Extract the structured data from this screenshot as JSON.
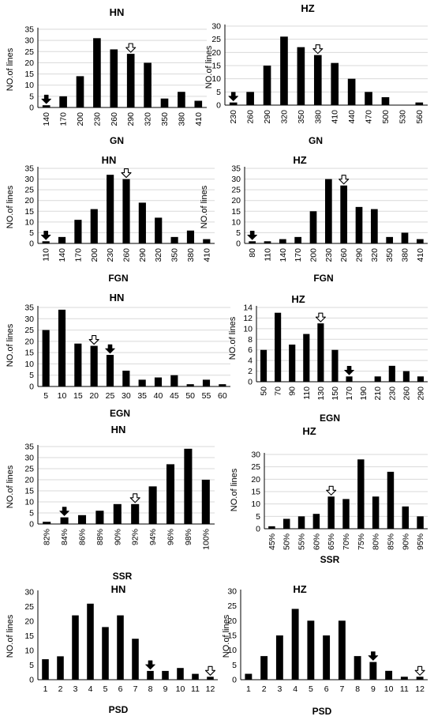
{
  "colors": {
    "bar": "#000000",
    "grid": "#d9d9d9",
    "axis": "#000000",
    "filled_arrow": "#000000",
    "open_arrow": "#ffffff"
  },
  "chart_data": [
    {
      "type": "bar",
      "title": "HN",
      "xlabel": "GN",
      "ylabel": "NO.of lines",
      "categories": [
        "140",
        "170",
        "200",
        "230",
        "260",
        "290",
        "320",
        "350",
        "380",
        "410"
      ],
      "values": [
        1,
        5,
        14,
        31,
        26,
        24,
        20,
        4,
        7,
        3
      ],
      "ylim": [
        0,
        35
      ],
      "yticks": [
        0,
        5,
        10,
        15,
        20,
        25,
        30,
        35
      ],
      "grid": true,
      "x_rotated": true,
      "markers": [
        {
          "category": "140",
          "style": "filled"
        },
        {
          "category": "290",
          "style": "open"
        }
      ]
    },
    {
      "type": "bar",
      "title": "HZ",
      "xlabel": "GN",
      "ylabel": "NO.of lines",
      "categories": [
        "230",
        "260",
        "290",
        "320",
        "350",
        "380",
        "410",
        "440",
        "470",
        "500",
        "530",
        "560"
      ],
      "values": [
        1,
        5,
        15,
        26,
        22,
        19,
        16,
        10,
        5,
        3,
        0,
        1
      ],
      "ylim": [
        0,
        30
      ],
      "yticks": [
        0,
        5,
        10,
        15,
        20,
        25,
        30
      ],
      "grid": true,
      "x_rotated": true,
      "markers": [
        {
          "category": "230",
          "style": "filled"
        },
        {
          "category": "380",
          "style": "open"
        }
      ]
    },
    {
      "type": "bar",
      "title": "HN",
      "xlabel": "FGN",
      "ylabel": "NO.of lines",
      "categories": [
        "110",
        "140",
        "170",
        "200",
        "230",
        "260",
        "290",
        "320",
        "350",
        "380",
        "410"
      ],
      "values": [
        1,
        3,
        11,
        16,
        32,
        30,
        19,
        12,
        3,
        6,
        2
      ],
      "ylim": [
        0,
        35
      ],
      "yticks": [
        0,
        5,
        10,
        15,
        20,
        25,
        30,
        35
      ],
      "grid": true,
      "x_rotated": true,
      "markers": [
        {
          "category": "110",
          "style": "filled"
        },
        {
          "category": "260",
          "style": "open"
        }
      ]
    },
    {
      "type": "bar",
      "title": "HZ",
      "xlabel": "FGN",
      "ylabel": "NO.of lines",
      "categories": [
        "80",
        "110",
        "140",
        "170",
        "200",
        "230",
        "260",
        "290",
        "320",
        "350",
        "380",
        "410"
      ],
      "values": [
        1,
        1,
        2,
        3,
        15,
        30,
        27,
        17,
        16,
        3,
        5,
        2
      ],
      "ylim": [
        0,
        35
      ],
      "yticks": [
        0,
        5,
        10,
        15,
        20,
        25,
        30,
        35
      ],
      "grid": true,
      "x_rotated": true,
      "markers": [
        {
          "category": "80",
          "style": "filled"
        },
        {
          "category": "260",
          "style": "open"
        }
      ]
    },
    {
      "type": "bar",
      "title": "HN",
      "xlabel": "EGN",
      "ylabel": "NO.of lines",
      "categories": [
        "5",
        "10",
        "15",
        "20",
        "25",
        "30",
        "35",
        "40",
        "45",
        "50",
        "55",
        "60"
      ],
      "values": [
        25,
        34,
        19,
        18,
        14,
        7,
        3,
        4,
        5,
        1,
        3,
        1
      ],
      "ylim": [
        0,
        35
      ],
      "yticks": [
        0,
        5,
        10,
        15,
        20,
        25,
        30,
        35
      ],
      "grid": true,
      "x_rotated": false,
      "markers": [
        {
          "category": "20",
          "style": "open"
        },
        {
          "category": "25",
          "style": "filled"
        }
      ]
    },
    {
      "type": "bar",
      "title": "HZ",
      "xlabel": "EGN",
      "ylabel": "NO.of lines",
      "categories": [
        "50",
        "70",
        "90",
        "110",
        "130",
        "150",
        "170",
        "190",
        "210",
        "230",
        "260",
        "290"
      ],
      "values": [
        6,
        13,
        7,
        9,
        11,
        6,
        1,
        0,
        1,
        3,
        2,
        1
      ],
      "ylim": [
        0,
        14
      ],
      "yticks": [
        0,
        2,
        4,
        6,
        8,
        10,
        12,
        14
      ],
      "grid": true,
      "x_rotated": true,
      "markers": [
        {
          "category": "130",
          "style": "open"
        },
        {
          "category": "170",
          "style": "filled"
        }
      ]
    },
    {
      "type": "bar",
      "title": "HN",
      "xlabel": "SSR",
      "ylabel": "NO.of lines",
      "categories": [
        "82%",
        "84%",
        "86%",
        "88%",
        "90%",
        "92%",
        "94%",
        "96%",
        "98%",
        "100%"
      ],
      "values": [
        1,
        3,
        4,
        6,
        9,
        9,
        17,
        27,
        34,
        20
      ],
      "ylim": [
        0,
        35
      ],
      "yticks": [
        0,
        5,
        10,
        15,
        20,
        25,
        30,
        35
      ],
      "grid": true,
      "x_rotated": true,
      "markers": [
        {
          "category": "84%",
          "style": "filled"
        },
        {
          "category": "92%",
          "style": "open"
        }
      ]
    },
    {
      "type": "bar",
      "title": "HZ",
      "xlabel": "SSR",
      "ylabel": "NO.of lines",
      "categories": [
        "45%",
        "50%",
        "55%",
        "60%",
        "65%",
        "70%",
        "75%",
        "80%",
        "85%",
        "90%",
        "95%"
      ],
      "values": [
        1,
        4,
        5,
        6,
        13,
        12,
        28,
        13,
        23,
        9,
        5
      ],
      "ylim": [
        0,
        30
      ],
      "yticks": [
        0,
        5,
        10,
        15,
        20,
        25,
        30
      ],
      "grid": true,
      "x_rotated": true,
      "markers": [
        {
          "category": "65%",
          "style": "open"
        }
      ]
    },
    {
      "type": "bar",
      "title": "HN",
      "xlabel": "PSD",
      "ylabel": "NO.of lines",
      "categories": [
        "1",
        "2",
        "3",
        "4",
        "5",
        "6",
        "7",
        "8",
        "9",
        "10",
        "11",
        "12"
      ],
      "values": [
        7,
        8,
        22,
        26,
        18,
        22,
        14,
        3,
        3,
        4,
        2,
        1
      ],
      "ylim": [
        0,
        30
      ],
      "yticks": [
        0,
        5,
        10,
        15,
        20,
        25,
        30
      ],
      "grid": false,
      "x_rotated": false,
      "markers": [
        {
          "category": "8",
          "style": "filled"
        },
        {
          "category": "12",
          "style": "open"
        }
      ]
    },
    {
      "type": "bar",
      "title": "HZ",
      "xlabel": "PSD",
      "ylabel": "NO.of lines",
      "categories": [
        "1",
        "2",
        "3",
        "4",
        "5",
        "6",
        "7",
        "8",
        "9",
        "10",
        "11",
        "12"
      ],
      "values": [
        2,
        8,
        15,
        24,
        20,
        15,
        20,
        8,
        6,
        3,
        1,
        1
      ],
      "ylim": [
        0,
        30
      ],
      "yticks": [
        0,
        5,
        10,
        15,
        20,
        25,
        30
      ],
      "grid": false,
      "x_rotated": false,
      "markers": [
        {
          "category": "9",
          "style": "filled"
        },
        {
          "category": "12",
          "style": "open"
        }
      ]
    }
  ]
}
